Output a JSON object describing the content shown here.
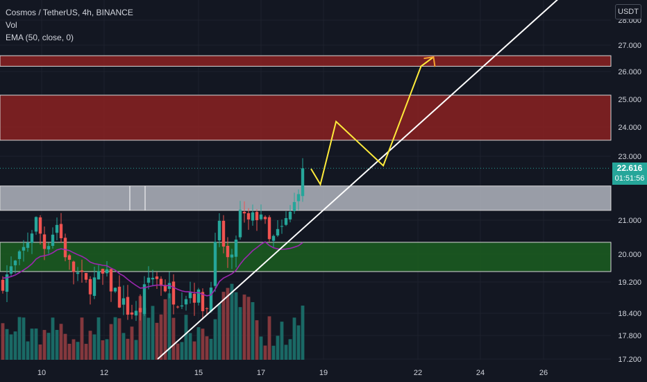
{
  "legend": {
    "title": "Cosmos / TetherUS, 4h, BINANCE",
    "indicator_1": "Vol",
    "indicator_2": "EMA (50, close, 0)"
  },
  "currency": "USDT",
  "last_price": {
    "value": "22.616",
    "countdown": "01:51:56",
    "color": "#26a69a"
  },
  "colors": {
    "background": "#131722",
    "up": "#26a69a",
    "down": "#ef5350",
    "ema": "#9c27b0",
    "trendline": "#ffffff",
    "projection": "#ffeb3b",
    "projection_arrow": "#f7a12f",
    "resistance_zone": "#8b2121",
    "neutral_zone": "#b2b5be",
    "support_zone": "#1b5e20"
  },
  "chart_data": {
    "type": "candlestick",
    "y_ticks": [
      17.2,
      17.8,
      18.4,
      19.2,
      20.0,
      21.0,
      22.0,
      23.0,
      24.0,
      25.0,
      26.0,
      27.0,
      28.0
    ],
    "y_tick_labels": [
      "17.200",
      "17.800",
      "18.400",
      "19.200",
      "20.000",
      "21.000",
      "22.000",
      "23.000",
      "24.000",
      "25.000",
      "26.000",
      "27.000",
      "28.000"
    ],
    "x_ticks": [
      10,
      12,
      15,
      17,
      19,
      22,
      24,
      26
    ],
    "x_tick_labels": [
      "10",
      "12",
      "15",
      "17",
      "19",
      "22",
      "24",
      "26"
    ],
    "zones": [
      {
        "name": "resistance-zone-upper",
        "low": 26.2,
        "high": 26.6,
        "color": "#8b2121"
      },
      {
        "name": "resistance-zone-lower",
        "low": 23.55,
        "high": 25.15,
        "color": "#8b2121"
      },
      {
        "name": "neutral-zone",
        "low": 21.3,
        "high": 22.05,
        "color": "#b2b5be"
      },
      {
        "name": "support-zone",
        "low": 19.5,
        "high": 20.35,
        "color": "#1b5e20"
      }
    ],
    "trendline": {
      "x": [
        13.7,
        26.6
      ],
      "y": [
        17.2,
        29.0
      ]
    },
    "projection": {
      "x": [
        18.6,
        18.9,
        19.4,
        20.9,
        22.1,
        22.5
      ],
      "y": [
        22.6,
        22.1,
        24.2,
        22.7,
        26.2,
        26.55
      ]
    },
    "ema_current": 19.9,
    "last_close": 22.616
  }
}
